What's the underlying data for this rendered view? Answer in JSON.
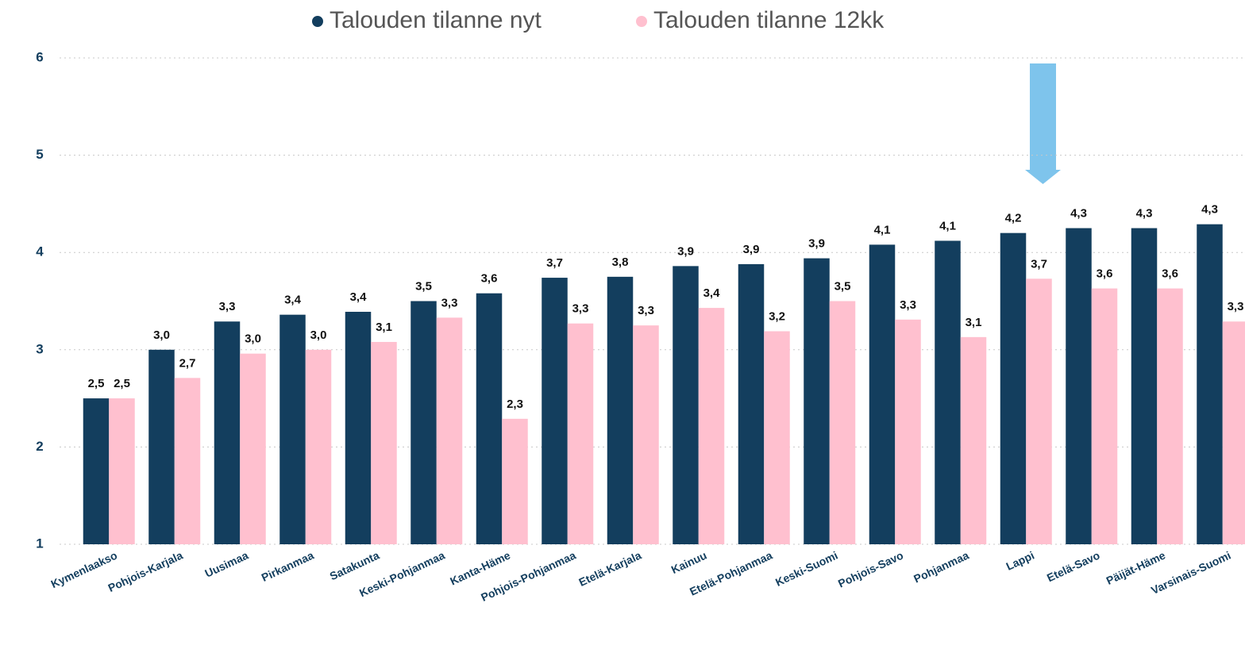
{
  "chart_data": {
    "type": "bar",
    "categories": [
      "Kymenlaakso",
      "Pohjois-Karjala",
      "Uusimaa",
      "Pirkanmaa",
      "Satakunta",
      "Keski-Pohjanmaa",
      "Kanta-Häme",
      "Pohjois-Pohjanmaa",
      "Etelä-Karjala",
      "Kainuu",
      "Etelä-Pohjanmaa",
      "Keski-Suomi",
      "Pohjois-Savo",
      "Pohjanmaa",
      "Lappi",
      "Etelä-Savo",
      "Päijät-Häme",
      "Varsinais-Suomi"
    ],
    "series": [
      {
        "name": "Talouden tilanne nyt",
        "color": "#133e5e",
        "values": [
          2.5,
          3.0,
          3.29,
          3.36,
          3.39,
          3.5,
          3.58,
          3.74,
          3.75,
          3.86,
          3.88,
          3.94,
          4.08,
          4.12,
          4.2,
          4.25,
          4.25,
          4.29
        ],
        "value_labels": [
          "2,5",
          "3,0",
          "3,3",
          "3,4",
          "3,4",
          "3,5",
          "3,6",
          "3,7",
          "3,8",
          "3,9",
          "3,9",
          "3,9",
          "4,1",
          "4,1",
          "4,2",
          "4,3",
          "4,3",
          "4,3"
        ]
      },
      {
        "name": "Talouden tilanne 12kk",
        "color": "#ffc0cf",
        "values": [
          2.5,
          2.71,
          2.96,
          3.0,
          3.08,
          3.33,
          2.29,
          3.27,
          3.25,
          3.43,
          3.19,
          3.5,
          3.31,
          3.13,
          3.73,
          3.63,
          3.63,
          3.29
        ],
        "value_labels": [
          "2,5",
          "2,7",
          "3,0",
          "3,0",
          "3,1",
          "3,3",
          "2,3",
          "3,3",
          "3,3",
          "3,4",
          "3,2",
          "3,5",
          "3,3",
          "3,1",
          "3,7",
          "3,6",
          "3,6",
          "3,3"
        ]
      }
    ],
    "ylim": [
      1,
      6
    ],
    "yticks": [
      1,
      2,
      3,
      4,
      5,
      6
    ],
    "grid": true,
    "legend": "top"
  }
}
